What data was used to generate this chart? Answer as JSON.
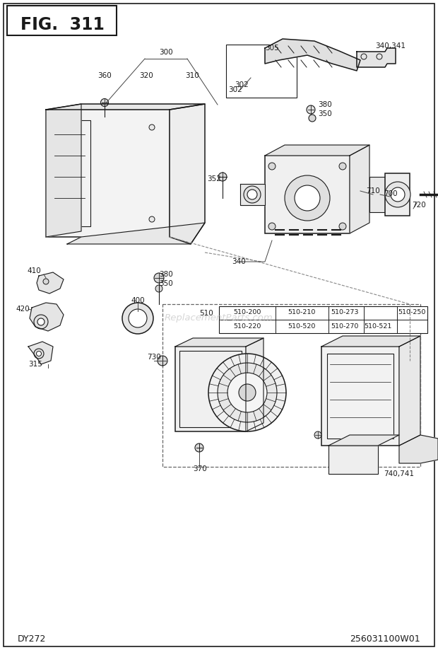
{
  "title": "FIG.  311",
  "bottom_left": "DY272",
  "bottom_right": "256031100W01",
  "bg_color": "#ffffff",
  "border_color": "#1a1a1a",
  "text_color": "#1a1a1a",
  "watermark": "ReplacementParts.com",
  "fig_width": 6.2,
  "fig_height": 9.19,
  "dpi": 100
}
